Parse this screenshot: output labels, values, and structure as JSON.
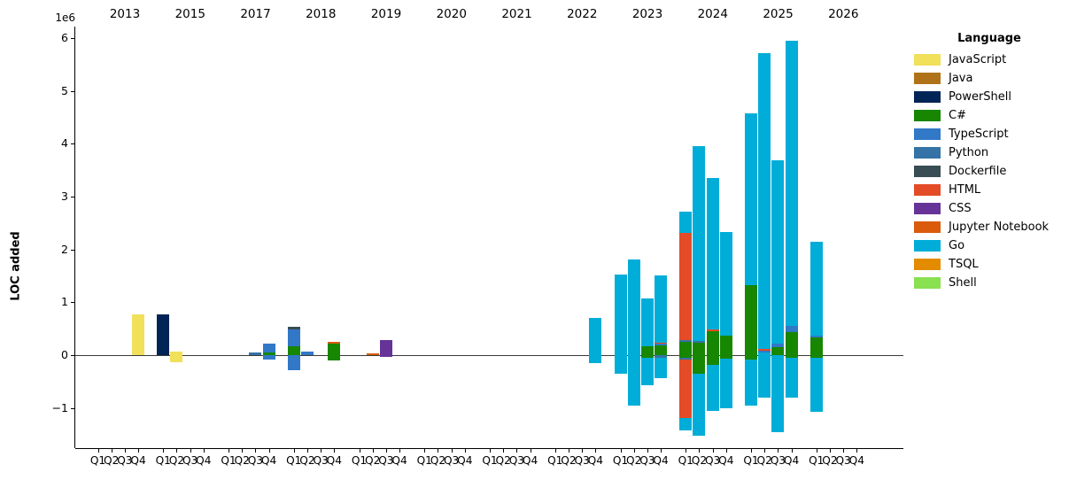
{
  "chart_data": {
    "type": "bar",
    "variant": "stacked-grouped-diverging",
    "title": "",
    "ylabel": "LOC added",
    "offset_text": "1e6",
    "unit": "1e6 lines of code",
    "ylim": [
      -1.76,
      6.22
    ],
    "grid": false,
    "zero_line": true,
    "yticks": [
      {
        "v": -1,
        "label": "−1"
      },
      {
        "v": 0,
        "label": "0"
      },
      {
        "v": 1,
        "label": "1"
      },
      {
        "v": 2,
        "label": "2"
      },
      {
        "v": 3,
        "label": "3"
      },
      {
        "v": 4,
        "label": "4"
      },
      {
        "v": 5,
        "label": "5"
      },
      {
        "v": 6,
        "label": "6"
      }
    ],
    "years": [
      "2013",
      "2015",
      "2017",
      "2018",
      "2019",
      "2020",
      "2021",
      "2022",
      "2023",
      "2024",
      "2025",
      "2026"
    ],
    "quarters": [
      "Q1",
      "Q2",
      "Q3",
      "Q4"
    ],
    "legend": {
      "title": "Language",
      "position": "upper right, outside axes",
      "entries": [
        {
          "label": "JavaScript",
          "color": "#f1e05a"
        },
        {
          "label": "Java",
          "color": "#b07219"
        },
        {
          "label": "PowerShell",
          "color": "#012456"
        },
        {
          "label": "C#",
          "color": "#178600"
        },
        {
          "label": "TypeScript",
          "color": "#3178c6"
        },
        {
          "label": "Python",
          "color": "#3572a5"
        },
        {
          "label": "Dockerfile",
          "color": "#384d54"
        },
        {
          "label": "HTML",
          "color": "#e34c26"
        },
        {
          "label": "CSS",
          "color": "#663399"
        },
        {
          "label": "Jupyter Notebook",
          "color": "#da5b0b"
        },
        {
          "label": "Go",
          "color": "#00add8"
        },
        {
          "label": "TSQL",
          "color": "#e38c00"
        },
        {
          "label": "Shell",
          "color": "#89e051"
        }
      ]
    },
    "bars": [
      {
        "year": "2013",
        "quarter": "Q4",
        "segments": [
          [
            "JavaScript",
            0,
            0.77
          ]
        ]
      },
      {
        "year": "2015",
        "quarter": "Q1",
        "segments": [
          [
            "PowerShell",
            0,
            0.77
          ]
        ]
      },
      {
        "year": "2015",
        "quarter": "Q2",
        "segments": [
          [
            "JavaScript",
            -0.13,
            0.07
          ]
        ]
      },
      {
        "year": "2017",
        "quarter": "Q3",
        "segments": [
          [
            "Python",
            0,
            0.05
          ]
        ]
      },
      {
        "year": "2017",
        "quarter": "Q4",
        "segments": [
          [
            "C#",
            0,
            0.05
          ],
          [
            "TypeScript",
            0.05,
            0.22
          ],
          [
            "TypeScript",
            -0.08,
            0
          ]
        ]
      },
      {
        "year": "2018",
        "quarter": "Q1",
        "segments": [
          [
            "C#",
            0,
            0.16
          ],
          [
            "TypeScript",
            0.16,
            0.49
          ],
          [
            "Dockerfile",
            0.49,
            0.53
          ],
          [
            "TypeScript",
            -0.29,
            0
          ]
        ]
      },
      {
        "year": "2018",
        "quarter": "Q2",
        "segments": [
          [
            "TypeScript",
            0,
            0.07
          ]
        ]
      },
      {
        "year": "2018",
        "quarter": "Q4",
        "segments": [
          [
            "C#",
            -0.1,
            0.22
          ],
          [
            "Jupyter Notebook",
            0.22,
            0.25
          ]
        ]
      },
      {
        "year": "2019",
        "quarter": "Q2",
        "segments": [
          [
            "Jupyter Notebook",
            0,
            0.03
          ]
        ]
      },
      {
        "year": "2019",
        "quarter": "Q3",
        "segments": [
          [
            "CSS",
            -0.03,
            0.28
          ]
        ]
      },
      {
        "year": "2022",
        "quarter": "Q4",
        "segments": [
          [
            "Go",
            -0.15,
            0.7
          ]
        ]
      },
      {
        "year": "2023",
        "quarter": "Q1",
        "segments": [
          [
            "Go",
            -0.35,
            1.52
          ]
        ]
      },
      {
        "year": "2023",
        "quarter": "Q2",
        "segments": [
          [
            "Go",
            -0.95,
            1.81
          ]
        ]
      },
      {
        "year": "2023",
        "quarter": "Q3",
        "segments": [
          [
            "C#",
            -0.05,
            0.17
          ],
          [
            "Go",
            0.17,
            1.08
          ],
          [
            "Go",
            -0.57,
            -0.05
          ]
        ]
      },
      {
        "year": "2023",
        "quarter": "Q4",
        "segments": [
          [
            "C#",
            0,
            0.18
          ],
          [
            "TypeScript",
            0.18,
            0.21
          ],
          [
            "HTML",
            0.21,
            0.24
          ],
          [
            "Go",
            0.24,
            1.51
          ],
          [
            "Python",
            -0.05,
            0
          ],
          [
            "Go",
            -0.43,
            -0.05
          ]
        ]
      },
      {
        "year": "2024",
        "quarter": "Q1",
        "segments": [
          [
            "C#",
            0,
            0.25
          ],
          [
            "Python",
            0.25,
            0.28
          ],
          [
            "HTML",
            0.28,
            2.31
          ],
          [
            "Go",
            2.31,
            2.71
          ],
          [
            "C#",
            -0.05,
            0
          ],
          [
            "Python",
            -0.08,
            -0.05
          ],
          [
            "HTML",
            -1.19,
            -0.08
          ],
          [
            "Go",
            -1.43,
            -1.19
          ]
        ]
      },
      {
        "year": "2024",
        "quarter": "Q2",
        "segments": [
          [
            "C#",
            0,
            0.23
          ],
          [
            "Python",
            0.23,
            0.27
          ],
          [
            "Go",
            0.27,
            3.95
          ],
          [
            "C#",
            -0.35,
            0
          ],
          [
            "Go",
            -1.52,
            -0.35
          ]
        ]
      },
      {
        "year": "2024",
        "quarter": "Q3",
        "segments": [
          [
            "C#",
            0,
            0.45
          ],
          [
            "HTML",
            0.45,
            0.49
          ],
          [
            "Go",
            0.49,
            3.35
          ],
          [
            "C#",
            -0.18,
            0
          ],
          [
            "Go",
            -1.05,
            -0.18
          ]
        ]
      },
      {
        "year": "2024",
        "quarter": "Q4",
        "segments": [
          [
            "C#",
            0,
            0.37
          ],
          [
            "Go",
            0.37,
            2.33
          ],
          [
            "C#",
            -0.07,
            0
          ],
          [
            "Go",
            -1.0,
            -0.07
          ]
        ]
      },
      {
        "year": "2025",
        "quarter": "Q1",
        "segments": [
          [
            "C#",
            0,
            1.32
          ],
          [
            "Go",
            1.32,
            4.58
          ],
          [
            "C#",
            -0.08,
            0
          ],
          [
            "Go",
            -0.95,
            -0.08
          ]
        ]
      },
      {
        "year": "2025",
        "quarter": "Q2",
        "segments": [
          [
            "Go",
            0,
            0.05
          ],
          [
            "TypeScript",
            0.05,
            0.08
          ],
          [
            "HTML",
            0.08,
            0.12
          ],
          [
            "Go",
            0.12,
            5.71
          ],
          [
            "Go",
            -0.8,
            0
          ]
        ]
      },
      {
        "year": "2025",
        "quarter": "Q3",
        "segments": [
          [
            "C#",
            0,
            0.15
          ],
          [
            "TypeScript",
            0.15,
            0.22
          ],
          [
            "Go",
            0.22,
            3.68
          ],
          [
            "Go",
            -1.45,
            0
          ]
        ]
      },
      {
        "year": "2025",
        "quarter": "Q4",
        "segments": [
          [
            "C#",
            0,
            0.44
          ],
          [
            "TypeScript",
            0.44,
            0.55
          ],
          [
            "Go",
            0.55,
            5.95
          ],
          [
            "C#",
            -0.05,
            0
          ],
          [
            "Go",
            -0.8,
            -0.05
          ]
        ]
      },
      {
        "year": "2026",
        "quarter": "Q1",
        "segments": [
          [
            "C#",
            0,
            0.33
          ],
          [
            "TypeScript",
            0.33,
            0.37
          ],
          [
            "Go",
            0.37,
            2.14
          ],
          [
            "C#",
            -0.05,
            0
          ],
          [
            "Go",
            -1.08,
            -0.05
          ]
        ]
      }
    ]
  }
}
